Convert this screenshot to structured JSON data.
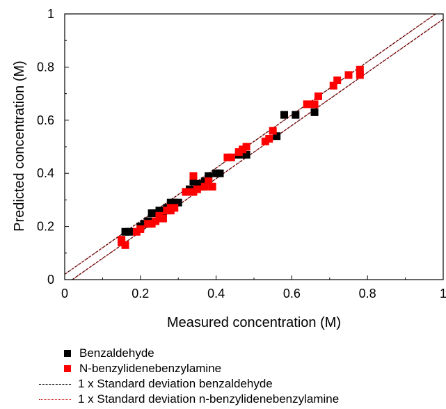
{
  "chart_data": {
    "type": "scatter",
    "title": "",
    "xlabel": "Measured concentration (M)",
    "ylabel": "Predicted concentration (M)",
    "xlim": [
      0,
      1
    ],
    "ylim": [
      0,
      1
    ],
    "x_ticks": [
      "0",
      "0.2",
      "0.4",
      "0.6",
      "0.8",
      "1"
    ],
    "y_ticks": [
      "0",
      "0.2",
      "0.4",
      "0.6",
      "0.8",
      "1"
    ],
    "grid": false,
    "legend_position": "bottom",
    "series": [
      {
        "name": "Benzaldehyde",
        "color": "#000000",
        "marker": "square",
        "points": [
          [
            0.16,
            0.18
          ],
          [
            0.17,
            0.18
          ],
          [
            0.2,
            0.2
          ],
          [
            0.21,
            0.21
          ],
          [
            0.22,
            0.22
          ],
          [
            0.23,
            0.25
          ],
          [
            0.24,
            0.25
          ],
          [
            0.25,
            0.26
          ],
          [
            0.26,
            0.25
          ],
          [
            0.27,
            0.27
          ],
          [
            0.28,
            0.28
          ],
          [
            0.28,
            0.29
          ],
          [
            0.29,
            0.29
          ],
          [
            0.3,
            0.29
          ],
          [
            0.32,
            0.33
          ],
          [
            0.33,
            0.34
          ],
          [
            0.34,
            0.37
          ],
          [
            0.35,
            0.36
          ],
          [
            0.36,
            0.35
          ],
          [
            0.37,
            0.37
          ],
          [
            0.38,
            0.39
          ],
          [
            0.4,
            0.4
          ],
          [
            0.41,
            0.4
          ],
          [
            0.46,
            0.47
          ],
          [
            0.48,
            0.47
          ],
          [
            0.56,
            0.54
          ],
          [
            0.58,
            0.62
          ],
          [
            0.61,
            0.62
          ],
          [
            0.66,
            0.63
          ]
        ]
      },
      {
        "name": "N-benzylidenebenzylamine",
        "color": "#ff0000",
        "marker": "square",
        "points": [
          [
            0.15,
            0.15
          ],
          [
            0.15,
            0.14
          ],
          [
            0.16,
            0.13
          ],
          [
            0.19,
            0.18
          ],
          [
            0.2,
            0.19
          ],
          [
            0.22,
            0.21
          ],
          [
            0.23,
            0.21
          ],
          [
            0.24,
            0.22
          ],
          [
            0.25,
            0.24
          ],
          [
            0.26,
            0.23
          ],
          [
            0.27,
            0.26
          ],
          [
            0.28,
            0.26
          ],
          [
            0.28,
            0.27
          ],
          [
            0.29,
            0.27
          ],
          [
            0.32,
            0.33
          ],
          [
            0.34,
            0.33
          ],
          [
            0.34,
            0.39
          ],
          [
            0.35,
            0.34
          ],
          [
            0.37,
            0.35
          ],
          [
            0.38,
            0.37
          ],
          [
            0.39,
            0.35
          ],
          [
            0.43,
            0.46
          ],
          [
            0.44,
            0.46
          ],
          [
            0.46,
            0.48
          ],
          [
            0.47,
            0.49
          ],
          [
            0.48,
            0.5
          ],
          [
            0.53,
            0.52
          ],
          [
            0.54,
            0.53
          ],
          [
            0.55,
            0.56
          ],
          [
            0.64,
            0.66
          ],
          [
            0.66,
            0.66
          ],
          [
            0.67,
            0.69
          ],
          [
            0.71,
            0.73
          ],
          [
            0.72,
            0.75
          ],
          [
            0.75,
            0.77
          ],
          [
            0.78,
            0.77
          ],
          [
            0.78,
            0.79
          ]
        ]
      }
    ],
    "reference_lines": [
      {
        "name": "1 x Standard deviation benzaldehyde",
        "style": "dashed",
        "color": "#000000",
        "intercepts": [
          0.02,
          -0.02
        ],
        "slope": 1
      },
      {
        "name": "1 x Standard deviation n-benzylidenebenzylamine",
        "style": "dotted",
        "color": "#cc0000",
        "intercepts": [
          0.02,
          -0.02
        ],
        "slope": 1
      }
    ]
  }
}
